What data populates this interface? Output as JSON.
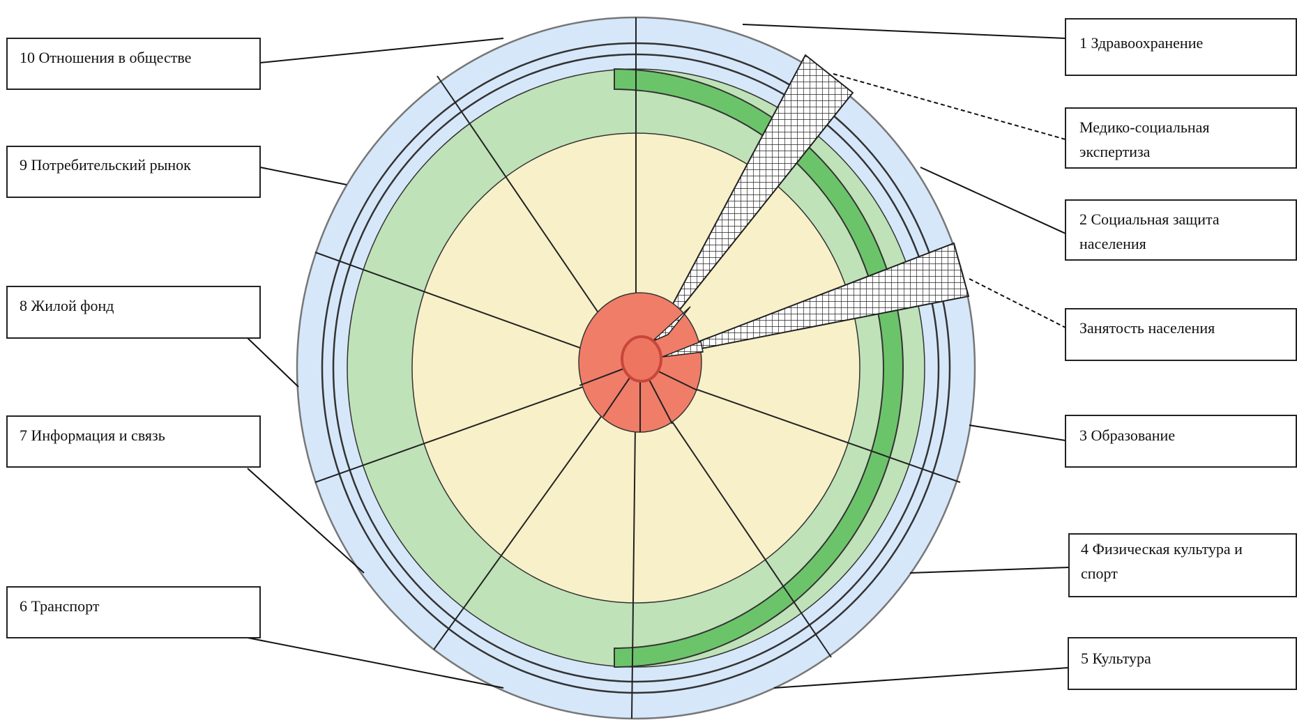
{
  "labels": {
    "l1": "1 Здравоохранение",
    "l_med1": "Медико-социальная",
    "l_med2": "экспертиза",
    "l2a": "2 Социальная защита",
    "l2b": "населения",
    "l_emp": "Занятость населения",
    "l3": "3 Образование",
    "l4a": "4 Физическая культура и",
    "l4b": "спорт",
    "l5": "5 Культура",
    "l6": "6 Транспорт",
    "l7": "7 Информация и связь",
    "l8": "8 Жилой фонд",
    "l9": "9 Потребительский рынок",
    "l10": "10 Отношения в обществе"
  },
  "colors": {
    "outer_ring": "#d6e7fa",
    "middle_ring": "#bfe2b8",
    "highlight_ring": "#6cc46a",
    "inner_disc": "#f8f0c8",
    "core_disc": "#f07d68",
    "center_dot": "#ee7560",
    "line": "#333333"
  }
}
